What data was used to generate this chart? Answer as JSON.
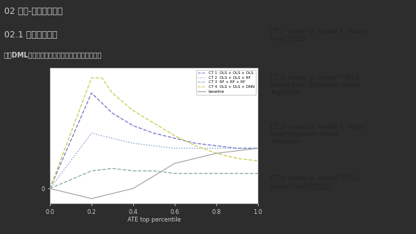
{
  "slide_bg": "#2d2d2d",
  "chart_bg": "#ffffff",
  "title1": "02 难点-应用中的问题",
  "title2": "02.1 双重神经网络",
  "subtitle": "基于DML框架的双重神经网络和其他模型的比较：",
  "xlabel": "ATE top percentile",
  "xlim": [
    0.0,
    1.0
  ],
  "ylim": [
    -0.06,
    0.48
  ],
  "x_ticks": [
    0.0,
    0.2,
    0.4,
    0.6,
    0.8,
    1.0
  ],
  "y_ticks": [
    0
  ],
  "legend_labels": [
    "CT 1  OLS + OLS + OLS",
    "CT 2  OLS + OLS + RF",
    "CT 3  RF + RF + RF",
    "CT 4  OLS + OLS + DNN",
    "baseline"
  ],
  "right_text": [
    "CT 1: model y, model T, model\nfinal 都是OLS",
    "CT 2: model y, model T是OLS,\nmodel final 都是random forest\nregressor",
    "CT 3: model y, model T, model\nfinal 都是random forest\nregressor",
    "CT 4: model y, model T是OLS,\nmodel final是双重神经网络"
  ],
  "lines": {
    "ct1": {
      "x": [
        0.0,
        0.2,
        0.3,
        0.4,
        0.5,
        0.6,
        0.7,
        0.8,
        0.9,
        1.0
      ],
      "y": [
        0.0,
        0.38,
        0.3,
        0.25,
        0.22,
        0.2,
        0.18,
        0.17,
        0.16,
        0.16
      ],
      "color": "#7777cc",
      "style": "--",
      "linewidth": 1.0
    },
    "ct2": {
      "x": [
        0.0,
        0.2,
        0.3,
        0.4,
        0.5,
        0.6,
        0.7,
        0.8,
        0.9,
        1.0
      ],
      "y": [
        0.0,
        0.22,
        0.2,
        0.18,
        0.17,
        0.16,
        0.16,
        0.16,
        0.16,
        0.16
      ],
      "color": "#7799cc",
      "style": ":",
      "linewidth": 1.0
    },
    "ct3": {
      "x": [
        0.0,
        0.2,
        0.3,
        0.4,
        0.5,
        0.6,
        0.7,
        0.8,
        0.9,
        1.0
      ],
      "y": [
        0.0,
        0.07,
        0.08,
        0.07,
        0.07,
        0.06,
        0.06,
        0.06,
        0.06,
        0.06
      ],
      "color": "#88aaaa",
      "style": "--",
      "linewidth": 1.0
    },
    "ct4": {
      "x": [
        0.0,
        0.2,
        0.25,
        0.3,
        0.4,
        0.5,
        0.6,
        0.7,
        0.8,
        0.9,
        1.0
      ],
      "y": [
        0.0,
        0.44,
        0.44,
        0.38,
        0.31,
        0.26,
        0.21,
        0.17,
        0.14,
        0.12,
        0.11
      ],
      "color": "#cccc55",
      "style": "--",
      "linewidth": 1.0
    },
    "baseline": {
      "x": [
        0.0,
        0.2,
        0.4,
        0.6,
        0.8,
        1.0
      ],
      "y": [
        0.0,
        -0.04,
        0.0,
        0.1,
        0.14,
        0.16
      ],
      "color": "#999999",
      "style": "-",
      "linewidth": 0.8
    }
  }
}
